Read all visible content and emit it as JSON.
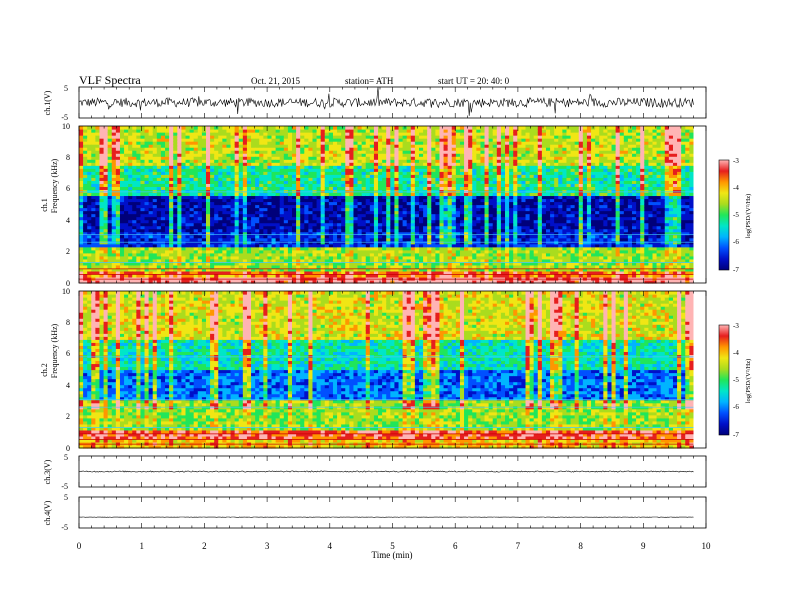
{
  "header": {
    "title": "VLF  Spectra",
    "date": "Oct. 21, 2015",
    "station": "station= ATH",
    "start_ut": "start  UT =   20: 40: 0"
  },
  "colors": {
    "spectrogram_stops": [
      "#00007a",
      "#0010c8",
      "#0050ff",
      "#00b4ff",
      "#00e6c8",
      "#20e65a",
      "#aadc1e",
      "#f0e614",
      "#ff9600",
      "#e61e1e",
      "#ffb4b4"
    ],
    "trace": "#000000",
    "frame": "#000000"
  },
  "chart_data": [
    {
      "type": "line",
      "name": "ch1-waveform",
      "ylabel": "ch.1(V)",
      "ylim": [
        -5,
        5
      ],
      "y_ticks": [
        "5",
        "-5"
      ],
      "xlim": [
        0,
        10
      ],
      "x_data_end": 9.8,
      "mean": 0,
      "typical_amplitude": 1.5
    },
    {
      "type": "heatmap",
      "name": "ch1-spectrogram",
      "ylabel_lines": [
        "ch.1",
        "Frequency  (kHz)"
      ],
      "ylim": [
        0,
        10
      ],
      "y_ticks": [
        "0",
        "2",
        "4",
        "6",
        "8",
        "10"
      ],
      "xlim": [
        0,
        10
      ],
      "x_data_end": 9.8,
      "colorbar": {
        "label": "log(PSD/(V²/Hz)",
        "range": [
          -7,
          -3
        ],
        "ticks": [
          "-3",
          "-4",
          "-5",
          "-6",
          "-7"
        ]
      },
      "level_bands": [
        {
          "f_from": 0,
          "f_to": 0.4,
          "level": -3.3
        },
        {
          "f_from": 0.4,
          "f_to": 0.8,
          "level": -3.8
        },
        {
          "f_from": 0.8,
          "f_to": 2.3,
          "level": -4.7
        },
        {
          "f_from": 2.3,
          "f_to": 3.2,
          "level": -6.3
        },
        {
          "f_from": 3.2,
          "f_to": 5.6,
          "level": -6.6
        },
        {
          "f_from": 5.6,
          "f_to": 7.5,
          "level": -5.2
        },
        {
          "f_from": 7.5,
          "f_to": 10,
          "level": -4.5
        }
      ]
    },
    {
      "type": "heatmap",
      "name": "ch2-spectrogram",
      "ylabel_lines": [
        "ch.2",
        "Frequency  (kHz)"
      ],
      "ylim": [
        0,
        10
      ],
      "y_ticks": [
        "0",
        "2",
        "4",
        "6",
        "8",
        "10"
      ],
      "xlim": [
        0,
        10
      ],
      "x_data_end": 9.8,
      "colorbar": {
        "label": "log(PSD/(V²/Hz)",
        "range": [
          -7,
          -3
        ],
        "ticks": [
          "-3",
          "-4",
          "-5",
          "-6",
          "-7"
        ]
      },
      "level_bands": [
        {
          "f_from": 0,
          "f_to": 0.6,
          "level": -4.2
        },
        {
          "f_from": 0.6,
          "f_to": 1.2,
          "level": -3.6
        },
        {
          "f_from": 1.2,
          "f_to": 3.0,
          "level": -4.7
        },
        {
          "f_from": 3.0,
          "f_to": 5.0,
          "level": -6.0
        },
        {
          "f_from": 5.0,
          "f_to": 7.0,
          "level": -5.3
        },
        {
          "f_from": 7.0,
          "f_to": 10,
          "level": -4.4
        }
      ]
    },
    {
      "type": "line",
      "name": "ch3-waveform",
      "ylabel": "ch.3(V)",
      "ylim": [
        -5,
        5
      ],
      "y_ticks": [
        "5",
        "-5"
      ],
      "xlim": [
        0,
        10
      ],
      "x_data_end": 9.8,
      "mean": 0,
      "typical_amplitude": 0.2
    },
    {
      "type": "line",
      "name": "ch4-waveform",
      "ylabel": "ch.4(V)",
      "ylim": [
        -5,
        5
      ],
      "y_ticks": [
        "5",
        "-5"
      ],
      "xlim": [
        0,
        10
      ],
      "x_data_end": 9.8,
      "mean": -1.5,
      "typical_amplitude": 0.05
    }
  ],
  "xaxis": {
    "label": "Time  (min)",
    "ticks": [
      "0",
      "1",
      "2",
      "3",
      "4",
      "5",
      "6",
      "7",
      "8",
      "9",
      "10"
    ]
  }
}
